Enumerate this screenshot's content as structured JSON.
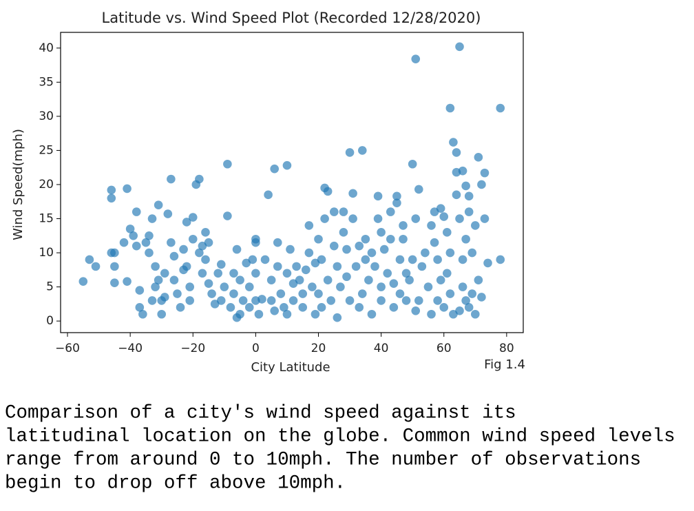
{
  "chart_data": {
    "type": "scatter",
    "title": "Latitude vs. Wind Speed Plot (Recorded 12/28/2020)",
    "xlabel": "City Latitude",
    "ylabel": "Wind Speed(mph)",
    "annotation": "Fig 1.4",
    "color": "#1f77b4",
    "xlim": [
      -62.2,
      85.3
    ],
    "ylim": [
      -1.7,
      42.3
    ],
    "xticks": [
      {
        "value": -60,
        "label": "−60"
      },
      {
        "value": -40,
        "label": "−40"
      },
      {
        "value": -20,
        "label": "−20"
      },
      0,
      20,
      40,
      60,
      80
    ],
    "yticks": [
      0,
      5,
      10,
      15,
      20,
      25,
      30,
      35,
      40
    ],
    "x": [
      -55,
      -53,
      -51,
      -46,
      -46,
      -46,
      -45,
      -45,
      -45,
      -42,
      -41,
      -41,
      -40,
      -39,
      -38,
      -38,
      -37,
      -37,
      -36,
      -35,
      -34,
      -34,
      -33,
      -33,
      -32,
      -32,
      -31,
      -31,
      -30,
      -30,
      -29,
      -29,
      -28,
      -27,
      -27,
      -26,
      -26,
      -25,
      -24,
      -23,
      -23,
      -22,
      -22,
      -21,
      -21,
      -20,
      -20,
      -19,
      -18,
      -18,
      -17,
      -17,
      -16,
      -16,
      -15,
      -15,
      -14,
      -13,
      -12,
      -11,
      -11,
      -10,
      -9,
      -9,
      -8,
      -7,
      -7,
      -6,
      -6,
      -5,
      -5,
      -4,
      -3,
      -2,
      -2,
      -1,
      0,
      0,
      0,
      0,
      1,
      2,
      3,
      4,
      5,
      5,
      6,
      6,
      7,
      7,
      8,
      9,
      10,
      10,
      10,
      11,
      12,
      12,
      13,
      14,
      15,
      15,
      16,
      17,
      17,
      18,
      19,
      19,
      20,
      20,
      21,
      21,
      22,
      22,
      23,
      23,
      24,
      25,
      25,
      26,
      26,
      27,
      28,
      28,
      29,
      29,
      30,
      30,
      31,
      31,
      32,
      33,
      33,
      34,
      34,
      35,
      35,
      36,
      37,
      37,
      38,
      39,
      39,
      40,
      40,
      40,
      41,
      42,
      43,
      43,
      44,
      44,
      45,
      45,
      46,
      46,
      47,
      47,
      48,
      48,
      49,
      50,
      50,
      51,
      51,
      51,
      52,
      52,
      53,
      54,
      55,
      56,
      56,
      57,
      57,
      58,
      58,
      59,
      59,
      60,
      60,
      61,
      61,
      62,
      62,
      62,
      63,
      63,
      64,
      64,
      64,
      65,
      65,
      65,
      66,
      66,
      66,
      67,
      67,
      67,
      68,
      68,
      68,
      69,
      69,
      70,
      70,
      71,
      71,
      72,
      72,
      73,
      73,
      74,
      78,
      78
    ],
    "values": [
      5.8,
      9,
      8,
      10,
      18,
      19.2,
      8,
      5.6,
      10,
      11.5,
      19.4,
      5.8,
      13.5,
      12.5,
      16,
      11,
      4.5,
      2,
      1,
      11.5,
      10,
      12.5,
      15,
      3,
      5,
      8,
      17,
      6,
      3,
      1,
      7,
      3.5,
      15.7,
      20.8,
      11.5,
      6,
      9.5,
      4,
      2,
      7.5,
      10.5,
      14.5,
      8,
      5,
      3,
      15.2,
      12,
      20,
      20.8,
      10,
      11,
      7,
      9,
      13,
      11.5,
      5.5,
      4,
      2.5,
      7,
      8.3,
      3,
      5,
      15.4,
      23,
      2,
      4,
      7,
      10.5,
      0.5,
      6,
      1,
      3,
      8.5,
      5,
      2,
      9,
      11.5,
      12,
      7,
      3,
      1,
      3.2,
      9,
      18.5,
      3,
      6,
      22.3,
      1.5,
      8,
      11.5,
      4,
      2,
      22.8,
      7,
      1,
      10.5,
      5.5,
      3,
      8,
      6,
      2,
      4,
      7.5,
      10,
      14,
      5,
      1,
      8.5,
      12,
      4,
      9,
      2,
      15,
      19.5,
      19,
      6,
      3,
      11,
      16,
      8,
      0.5,
      5,
      13,
      16,
      10.5,
      6.5,
      3,
      24.7,
      18.7,
      15,
      8,
      2,
      11,
      25,
      4,
      12,
      9,
      6,
      1,
      10,
      8,
      18.3,
      15,
      13,
      5,
      3,
      10.5,
      7,
      16,
      12,
      2,
      5.5,
      17.3,
      18.3,
      9,
      4,
      12,
      14,
      7,
      3,
      6,
      23,
      9,
      38.4,
      1.5,
      15,
      19.3,
      3,
      8,
      10,
      5,
      14,
      1,
      16,
      11.5,
      9,
      3,
      16.5,
      6,
      15.3,
      2,
      13,
      7,
      31.2,
      10,
      4,
      1,
      26.2,
      24.7,
      21.8,
      18.5,
      40.2,
      15,
      1.5,
      22,
      9,
      5,
      19.8,
      12,
      3,
      18.3,
      16,
      2,
      10,
      4,
      14,
      1,
      24,
      6,
      20,
      3.5,
      21.7,
      15,
      8.5,
      31.2,
      9
    ]
  },
  "caption": [
    "Comparison of a city's wind speed against its",
    "latitudinal location on the globe. Common wind speed levels",
    "range from around 0 to 10mph. The number of observations",
    "begin to drop off above 10mph."
  ]
}
